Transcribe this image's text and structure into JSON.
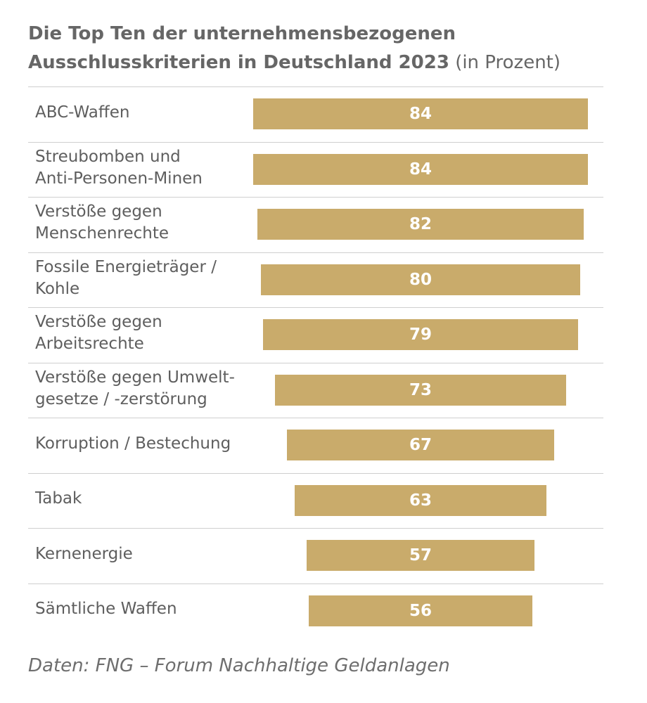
{
  "title_main": "Die Top Ten der unternehmensbezogenen Ausschlusskriterien in Deutschland 2023",
  "title_unit": "(in Prozent)",
  "source": "Daten: FNG – Forum Nachhaltige Geldanlagen",
  "colors": {
    "bar": "#c9ab6b",
    "value_text": "#ffffff",
    "separator": "#cfcfcf"
  },
  "chart_data": {
    "type": "bar",
    "orientation": "horizontal",
    "categories": [
      [
        "ABC-Waffen"
      ],
      [
        "Streubomben und",
        "Anti-Personen-Minen"
      ],
      [
        "Verstöße gegen",
        "Menschenrechte"
      ],
      [
        "Fossile Energieträger /",
        "Kohle"
      ],
      [
        "Verstöße gegen",
        "Arbeitsrechte"
      ],
      [
        "Verstöße gegen Umwelt-",
        "gesetze / -zerstörung"
      ],
      [
        "Korruption / Bestechung"
      ],
      [
        "Tabak"
      ],
      [
        "Kernenergie"
      ],
      [
        "Sämtliche Waffen"
      ]
    ],
    "values": [
      84,
      84,
      82,
      80,
      79,
      73,
      67,
      63,
      57,
      56
    ],
    "value_labels": [
      "84",
      "84",
      "82",
      "80",
      "79",
      "73",
      "67",
      "63",
      "57",
      "56"
    ],
    "title": "Die Top Ten der unternehmensbezogenen Ausschlusskriterien in Deutschland 2023 (in Prozent)",
    "bar_alignment": "centered",
    "grid": false,
    "legend": "none"
  }
}
